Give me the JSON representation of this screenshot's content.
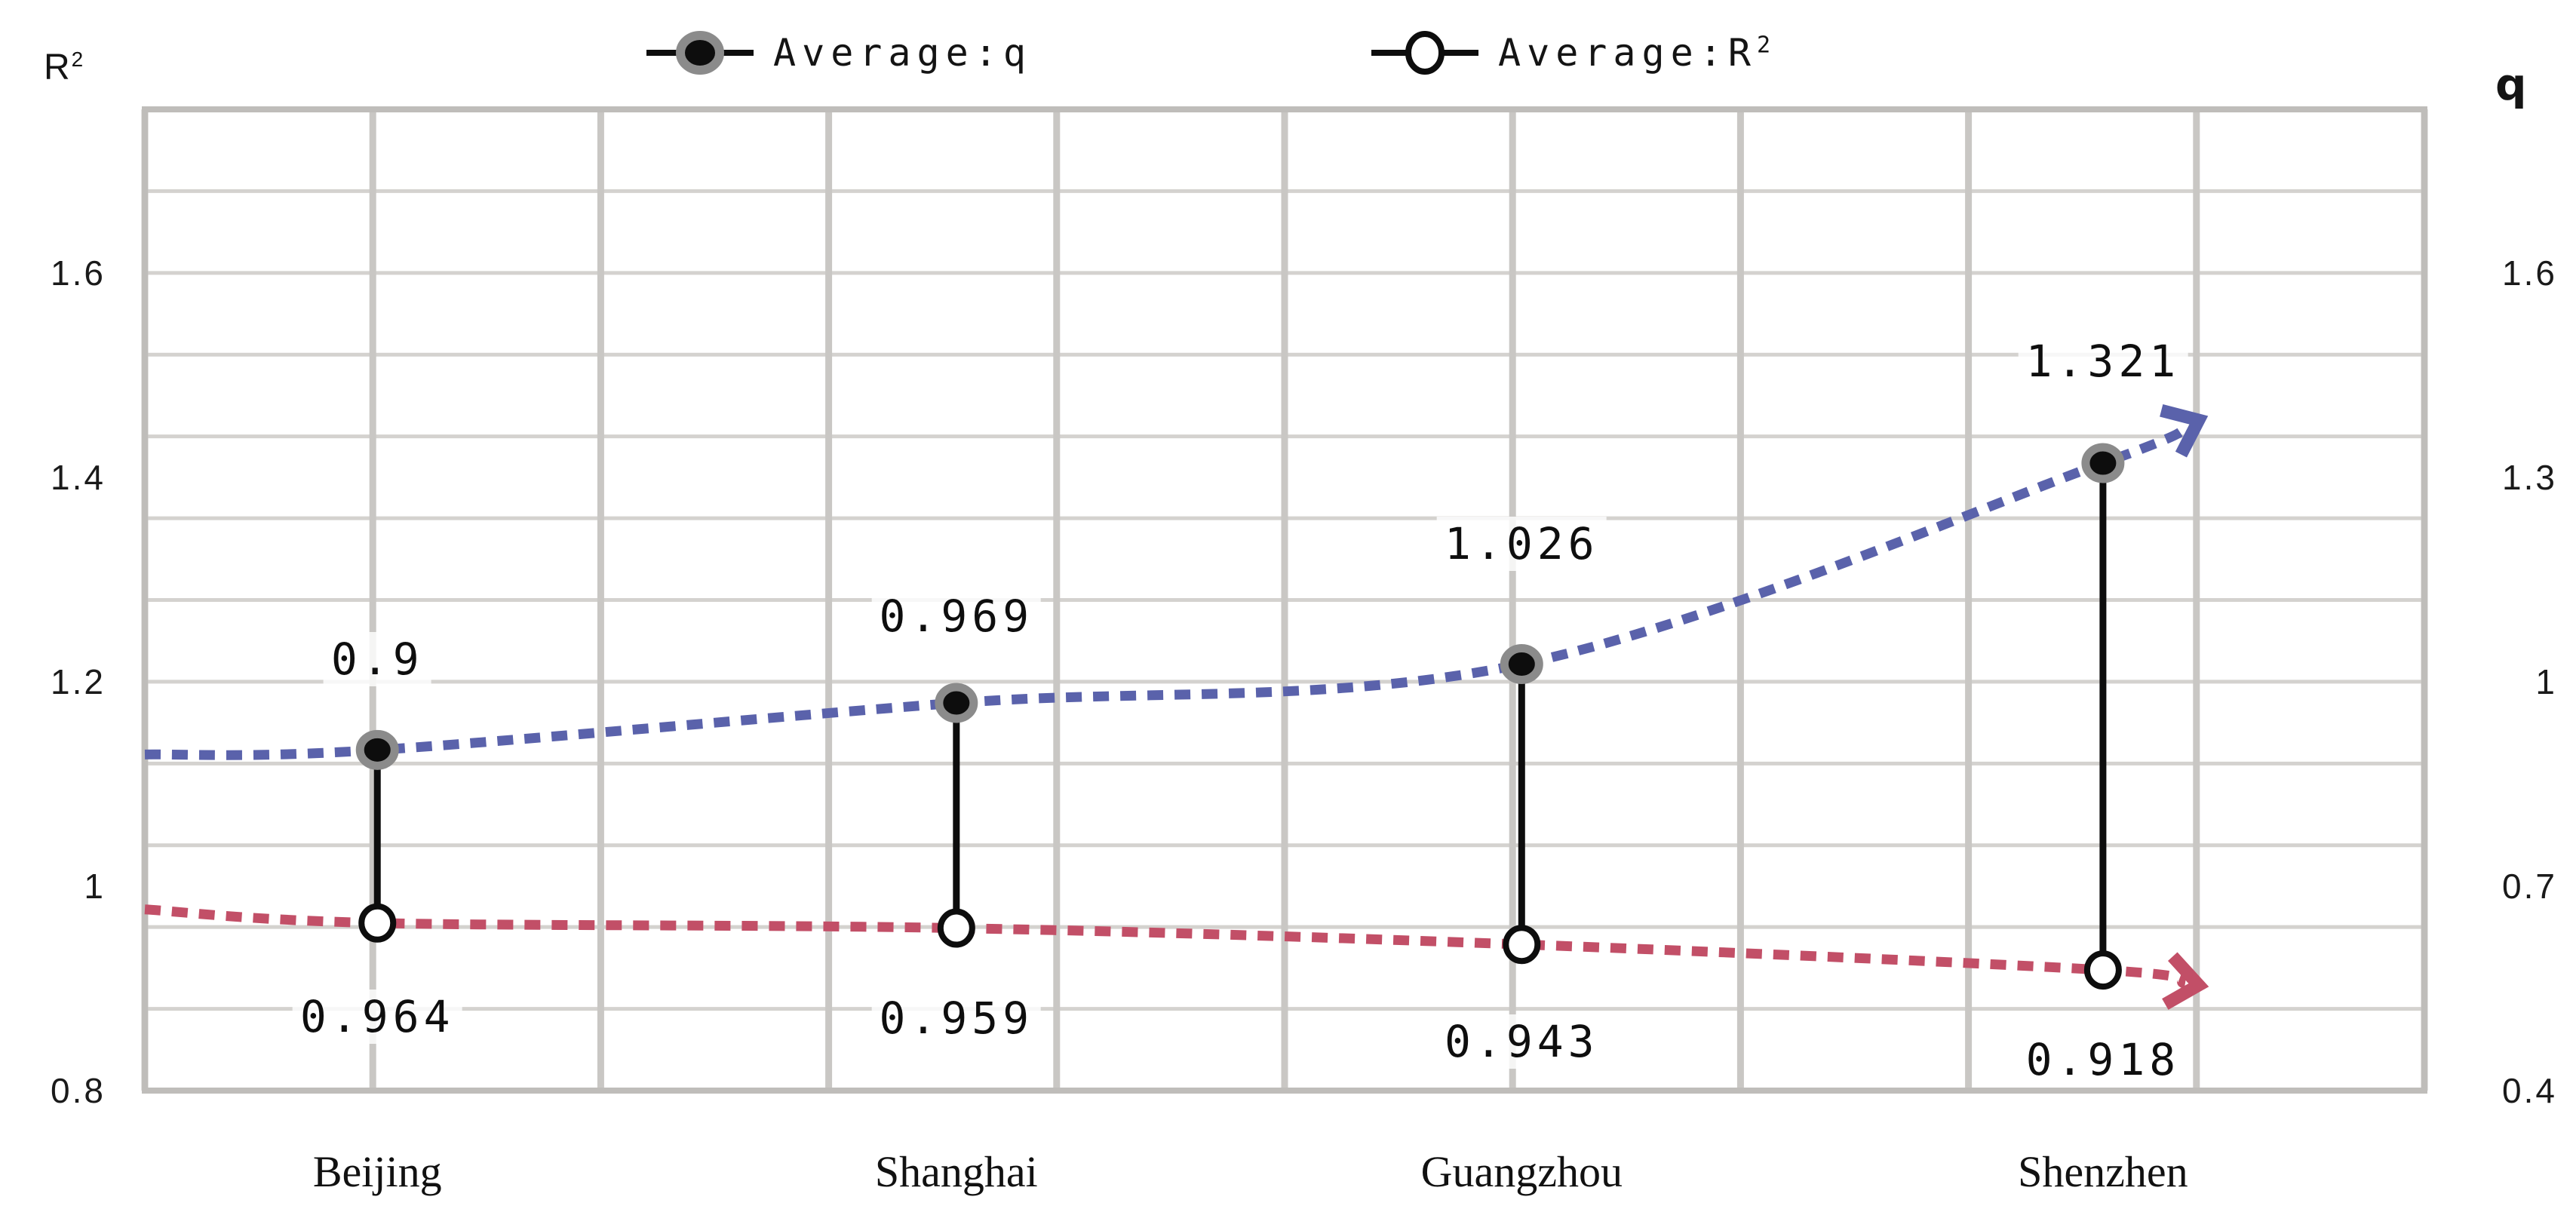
{
  "axis_titles": {
    "left_base": "R",
    "left_sup": "2",
    "right": "q"
  },
  "legend": {
    "q": {
      "label": "Average:q"
    },
    "r2": {
      "label_base": "Average:R",
      "label_sup": "2"
    }
  },
  "colors": {
    "q_line": "#5a62ab",
    "r2_line": "#c24f67",
    "grid_vertical": "#c9c7c4",
    "grid_horizontal": "#d4d2cf",
    "plot_border": "#bfbdba",
    "marker_ring_gray": "#8b8b8b",
    "marker_black": "#0d0d0d",
    "marker_open_fill": "#ffffff",
    "high_low_line": "#0d0d0d",
    "text": "#141414",
    "background": "#ffffff"
  },
  "chart_data": {
    "type": "line",
    "categories": [
      "Beijing",
      "Shanghai",
      "Guangzhou",
      "Shenzhen"
    ],
    "series": [
      {
        "name": "Average:q",
        "axis": "right",
        "values": [
          0.9,
          0.969,
          1.026,
          1.321
        ],
        "data_labels": [
          "0.9",
          "0.969",
          "1.026",
          "1.321"
        ],
        "color": "#5a62ab",
        "line_style": "dashed",
        "marker": "filled-black-gray-ring",
        "end_arrow": true
      },
      {
        "name": "Average:R2",
        "axis": "left",
        "values": [
          0.964,
          0.959,
          0.943,
          0.918
        ],
        "data_labels": [
          "0.964",
          "0.959",
          "0.943",
          "0.918"
        ],
        "color": "#c24f67",
        "line_style": "dashed",
        "marker": "open-white-black-ring",
        "end_arrow": true
      }
    ],
    "left_axis": {
      "title": "R2",
      "tick_labels": [
        "1.6",
        "1.4",
        "1.2",
        "1",
        "0.8"
      ],
      "tick_values": [
        1.6,
        1.4,
        1.2,
        1.0,
        0.8
      ]
    },
    "right_axis": {
      "title": "q",
      "tick_labels": [
        "1.6",
        "1.3",
        "1",
        "0.7",
        "0.4"
      ],
      "tick_values": [
        1.6,
        1.3,
        1.0,
        0.7,
        0.4
      ]
    },
    "grid": {
      "rows": 12,
      "cols": 10
    },
    "high_low_lines": true,
    "legend_position": "top"
  }
}
